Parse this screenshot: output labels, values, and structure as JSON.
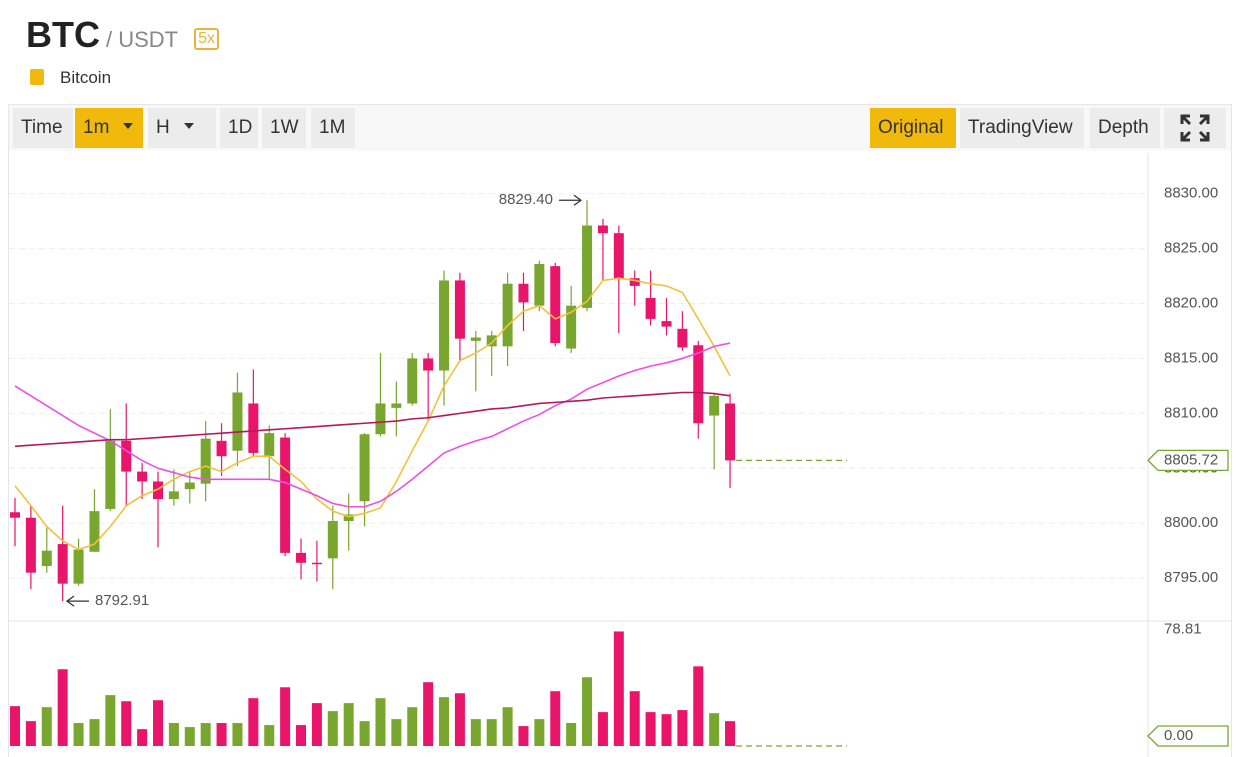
{
  "header": {
    "base": "BTC",
    "quote": "/ USDT",
    "leverage": "5x",
    "name": "Bitcoin"
  },
  "toolbar": {
    "intervals": [
      "Time",
      "1m",
      "H",
      "1D",
      "1W",
      "1M"
    ],
    "selected_interval": "1m",
    "views": [
      "Original",
      "TradingView",
      "Depth"
    ],
    "selected_view": "Original"
  },
  "chart_data": {
    "type": "candlestick",
    "open": [
      8801.0,
      8800.5,
      8796.1,
      8798.1,
      8794.5,
      8797.4,
      8801.3,
      8807.5,
      8804.7,
      8803.8,
      8802.2,
      8803.1,
      8803.6,
      8807.5,
      8806.6,
      8810.9,
      8806.1,
      8807.8,
      8797.3,
      8796.4,
      8796.8,
      8800.2,
      8802.0,
      8808.1,
      8810.5,
      8810.9,
      8815.0,
      8813.9,
      8822.1,
      8816.6,
      8816.1,
      8816.1,
      8821.8,
      8819.8,
      8823.4,
      8815.9,
      8819.6,
      8827.1,
      8826.4,
      8822.3,
      8820.5,
      8818.4,
      8817.7,
      8816.2,
      8809.8,
      8810.9
    ],
    "high": [
      8802.3,
      8801.6,
      8799.6,
      8801.6,
      8798.6,
      8803.1,
      8810.4,
      8810.9,
      8805.5,
      8804.7,
      8804.9,
      8804.7,
      8809.3,
      8809.1,
      8813.7,
      8814.0,
      8808.9,
      8808.2,
      8798.6,
      8798.4,
      8801.6,
      8802.7,
      8808.2,
      8815.5,
      8812.9,
      8815.5,
      8815.5,
      8823.0,
      8822.8,
      8817.5,
      8817.5,
      8822.8,
      8822.8,
      8823.9,
      8823.7,
      8821.6,
      8829.4,
      8827.7,
      8827.1,
      8823.0,
      8823.0,
      8820.5,
      8819.3,
      8816.6,
      8811.8,
      8811.8
    ],
    "low": [
      8797.9,
      8794.0,
      8795.5,
      8792.91,
      8794.3,
      8797.4,
      8801.1,
      8801.6,
      8802.2,
      8797.8,
      8801.6,
      8801.8,
      8802.0,
      8804.3,
      8805.2,
      8806.1,
      8804.0,
      8797.0,
      8794.9,
      8794.7,
      8794.0,
      8797.5,
      8799.7,
      8807.9,
      8807.9,
      8810.7,
      8809.3,
      8810.7,
      8814.8,
      8812.0,
      8813.4,
      8814.3,
      8817.5,
      8819.3,
      8816.1,
      8815.5,
      8819.3,
      8822.1,
      8817.3,
      8819.8,
      8818.0,
      8817.1,
      8815.7,
      8807.7,
      8804.9,
      8803.2
    ],
    "close": [
      8800.5,
      8795.5,
      8797.5,
      8794.5,
      8797.6,
      8801.1,
      8807.5,
      8804.7,
      8803.8,
      8802.2,
      8802.9,
      8803.7,
      8807.7,
      8806.1,
      8811.9,
      8806.4,
      8808.2,
      8797.3,
      8796.4,
      8796.3,
      8800.2,
      8800.8,
      8808.1,
      8810.9,
      8810.9,
      8815.0,
      8813.9,
      8822.1,
      8816.8,
      8816.9,
      8817.1,
      8821.8,
      8820.1,
      8823.6,
      8816.4,
      8819.8,
      8827.1,
      8826.4,
      8822.3,
      8821.6,
      8818.6,
      8817.9,
      8816.0,
      8809.1,
      8811.6,
      8805.72
    ],
    "volume": [
      27.4,
      17.1,
      26.7,
      52.8,
      15.8,
      18.5,
      35.0,
      30.8,
      11.6,
      31.5,
      15.8,
      13.0,
      15.8,
      15.8,
      15.8,
      32.9,
      14.4,
      40.4,
      14.4,
      29.5,
      24.0,
      29.5,
      17.1,
      32.9,
      18.5,
      26.7,
      43.9,
      33.6,
      36.3,
      18.5,
      18.5,
      26.7,
      13.7,
      18.5,
      37.7,
      15.8,
      47.3,
      23.3,
      78.81,
      37.7,
      23.3,
      21.9,
      24.7,
      54.8,
      22.6,
      17.1
    ],
    "up_color": "#79a62f",
    "down_color": "#e8156b",
    "moving_averages": [
      {
        "color": "#f2c13b",
        "values": [
          8803.4,
          8801.6,
          8799.7,
          8798.4,
          8797.6,
          8798.1,
          8799.7,
          8801.6,
          8802.5,
          8803.1,
          8804.0,
          8804.7,
          8805.2,
          8804.7,
          8805.5,
          8806.1,
          8806.1,
          8804.9,
          8803.8,
          8802.2,
          8801.1,
          8800.6,
          8800.9,
          8801.4,
          8803.8,
          8806.6,
          8809.3,
          8812.5,
          8814.8,
          8815.5,
          8816.4,
          8818.0,
          8819.3,
          8819.8,
          8818.6,
          8819.2,
          8820.2,
          8822.1,
          8822.3,
          8822.1,
          8821.8,
          8821.6,
          8821.0,
          8818.6,
          8816.1,
          8813.4
        ]
      },
      {
        "color": "#ee4fe6",
        "values": [
          8812.5,
          8811.6,
          8810.7,
          8809.8,
          8808.9,
          8808.2,
          8807.5,
          8806.6,
          8805.7,
          8805.0,
          8804.6,
          8804.2,
          8804.0,
          8804.0,
          8804.0,
          8804.0,
          8804.0,
          8803.7,
          8803.1,
          8802.5,
          8801.8,
          8801.5,
          8801.5,
          8802.0,
          8802.9,
          8804.0,
          8805.2,
          8806.4,
          8807.0,
          8807.5,
          8807.9,
          8808.6,
          8809.3,
          8809.9,
          8810.7,
          8811.3,
          8812.2,
          8812.8,
          8813.4,
          8813.9,
          8814.3,
          8814.6,
          8815.0,
          8815.5,
          8816.1,
          8816.4
        ]
      },
      {
        "color": "#b01a5c",
        "values": [
          8807.0,
          8807.1,
          8807.2,
          8807.3,
          8807.4,
          8807.5,
          8807.6,
          8807.6,
          8807.7,
          8807.8,
          8807.9,
          8808.0,
          8808.1,
          8808.2,
          8808.3,
          8808.4,
          8808.5,
          8808.6,
          8808.7,
          8808.8,
          8808.9,
          8809.0,
          8809.1,
          8809.2,
          8809.3,
          8809.5,
          8809.6,
          8809.8,
          8810.0,
          8810.2,
          8810.4,
          8810.5,
          8810.7,
          8810.9,
          8811.0,
          8811.1,
          8811.2,
          8811.4,
          8811.5,
          8811.6,
          8811.7,
          8811.8,
          8811.9,
          8811.9,
          8811.8,
          8811.6
        ]
      }
    ],
    "ylim": [
      8791.1,
      8833.7
    ],
    "yticks": [
      {
        "value": 8830,
        "label": "8830.00"
      },
      {
        "value": 8825,
        "label": "8825.00"
      },
      {
        "value": 8820,
        "label": "8820.00"
      },
      {
        "value": 8815,
        "label": "8815.00"
      },
      {
        "value": 8810,
        "label": "8810.00"
      },
      {
        "value": 8805,
        "label": "8805.00"
      },
      {
        "value": 8800,
        "label": "8800.00"
      },
      {
        "value": 8795,
        "label": "8795.00"
      }
    ],
    "volume_ylim": [
      0,
      86
    ],
    "volume_ticks": [
      78.81,
      {
        "value": 0,
        "label": "0.00"
      }
    ],
    "annotations": [
      {
        "value": 8829.4,
        "label": "8829.40"
      },
      {
        "value": 8792.91,
        "label": "8792.91"
      }
    ],
    "grid": true
  }
}
